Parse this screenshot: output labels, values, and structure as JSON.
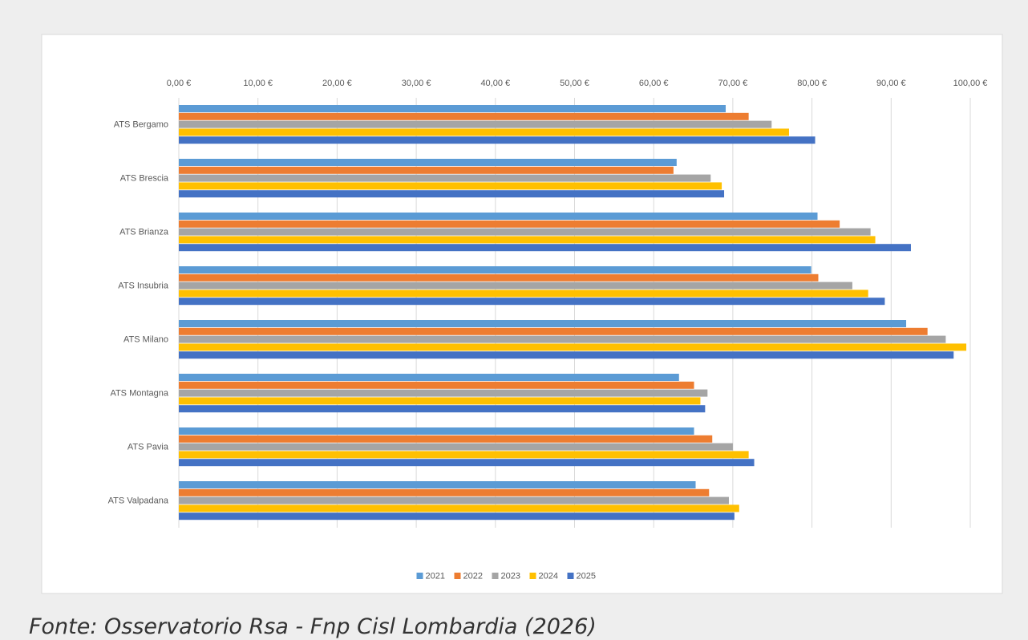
{
  "chart_data": {
    "type": "hbar",
    "categories": [
      "ATS Bergamo",
      "ATS Brescia",
      "ATS Brianza",
      "ATS Insubria",
      "ATS Milano",
      "ATS Montagna",
      "ATS Pavia",
      "ATS Valpadana"
    ],
    "series": [
      {
        "name": "2021",
        "color": "#5b9bd5",
        "values": [
          69.1,
          62.9,
          80.7,
          79.9,
          91.9,
          63.2,
          65.1,
          65.3
        ]
      },
      {
        "name": "2022",
        "color": "#ed7d31",
        "values": [
          72.0,
          62.5,
          83.5,
          80.8,
          94.6,
          65.1,
          67.4,
          67.0
        ]
      },
      {
        "name": "2023",
        "color": "#a5a5a5",
        "values": [
          74.9,
          67.2,
          87.4,
          85.1,
          96.9,
          66.8,
          70.0,
          69.5
        ]
      },
      {
        "name": "2024",
        "color": "#ffc000",
        "values": [
          77.1,
          68.6,
          88.0,
          87.1,
          99.5,
          65.9,
          72.0,
          70.8
        ]
      },
      {
        "name": "2025",
        "color": "#4472c4",
        "values": [
          80.4,
          68.9,
          92.5,
          89.2,
          97.9,
          66.5,
          72.7,
          70.2
        ]
      }
    ],
    "xlim": [
      0,
      100
    ],
    "xticks": [
      {
        "value": 0,
        "label": "0,00 €"
      },
      {
        "value": 10,
        "label": "10,00 €"
      },
      {
        "value": 20,
        "label": "20,00 €"
      },
      {
        "value": 30,
        "label": "30,00 €"
      },
      {
        "value": 40,
        "label": "40,00 €"
      },
      {
        "value": 50,
        "label": "50,00 €"
      },
      {
        "value": 60,
        "label": "60,00 €"
      },
      {
        "value": 70,
        "label": "70,00 €"
      },
      {
        "value": 80,
        "label": "80,00 €"
      },
      {
        "value": 90,
        "label": "90,00 €"
      },
      {
        "value": 100,
        "label": "100,00 €"
      }
    ],
    "grid": true,
    "legend": "bottom"
  },
  "caption": "Fonte: Osservatorio Rsa - Fnp Cisl Lombardia (2026)"
}
